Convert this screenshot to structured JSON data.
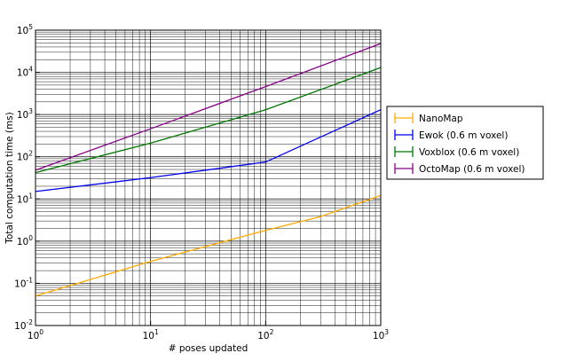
{
  "chart_data": {
    "type": "line",
    "title": "",
    "xlabel": "# poses updated",
    "ylabel": "Total computation time (ms)",
    "xscale": "log",
    "yscale": "log",
    "xlim": [
      1,
      1000
    ],
    "ylim": [
      0.01,
      100000
    ],
    "grid": "major and minor",
    "x_ticks": [
      {
        "value": 1,
        "base": "10",
        "exp": "0"
      },
      {
        "value": 10,
        "base": "10",
        "exp": "1"
      },
      {
        "value": 100,
        "base": "10",
        "exp": "2"
      },
      {
        "value": 1000,
        "base": "10",
        "exp": "3"
      }
    ],
    "y_ticks": [
      {
        "value": 0.01,
        "base": "10",
        "exp": "-2"
      },
      {
        "value": 0.1,
        "base": "10",
        "exp": "-1"
      },
      {
        "value": 1,
        "base": "10",
        "exp": "0"
      },
      {
        "value": 10,
        "base": "10",
        "exp": "1"
      },
      {
        "value": 100,
        "base": "10",
        "exp": "2"
      },
      {
        "value": 1000,
        "base": "10",
        "exp": "3"
      },
      {
        "value": 10000,
        "base": "10",
        "exp": "4"
      },
      {
        "value": 100000,
        "base": "10",
        "exp": "5"
      }
    ],
    "legend_position": "right, outside plot",
    "series": [
      {
        "name": "NanoMap",
        "color": "#ffaa00",
        "x": [
          1,
          10,
          100,
          300,
          1000
        ],
        "y": [
          0.05,
          0.33,
          1.8,
          3.8,
          12
        ]
      },
      {
        "name": "Ewok (0.6 m voxel)",
        "color": "#0000ee",
        "x": [
          1,
          10,
          100,
          1000
        ],
        "y": [
          15,
          32,
          75,
          1300
        ]
      },
      {
        "name": "Voxblox (0.6 m voxel)",
        "color": "#007700",
        "x": [
          1,
          10,
          100,
          1000
        ],
        "y": [
          42,
          210,
          1300,
          13000
        ]
      },
      {
        "name": "OctoMap (0.6 m voxel)",
        "color": "#880088",
        "x": [
          1,
          10,
          100,
          1000
        ],
        "y": [
          48,
          460,
          4600,
          48000
        ]
      }
    ]
  }
}
